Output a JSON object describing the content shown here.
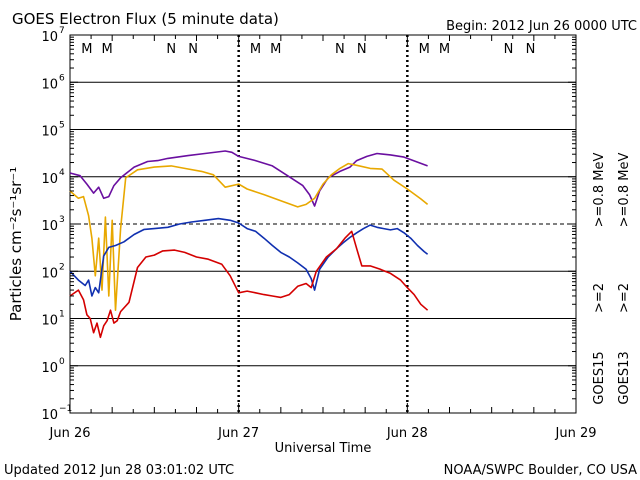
{
  "chart_data": {
    "type": "line",
    "title": "GOES Electron Flux (5 minute data)",
    "begin_label": "Begin: 2012 Jun 26 0000 UTC",
    "updated_label": "Updated 2012 Jun 28 03:01:02 UTC",
    "credit_label": "NOAA/SWPC Boulder, CO USA",
    "xlabel": "Universal Time",
    "ylabel": "Particles cm⁻²s⁻¹sr⁻¹",
    "x_unit": "days since 2012 Jun 26 0000 UTC",
    "xlim": [
      0,
      3
    ],
    "ylim_log10": [
      -1,
      7
    ],
    "x_ticks": [
      {
        "x": 0,
        "label": "Jun 26"
      },
      {
        "x": 1,
        "label": "Jun 27"
      },
      {
        "x": 2,
        "label": "Jun 28"
      },
      {
        "x": 3,
        "label": "Jun 29"
      }
    ],
    "y_ticks": [
      {
        "exp": 7,
        "base": "10",
        "sup": "7"
      },
      {
        "exp": 6,
        "base": "10",
        "sup": "6"
      },
      {
        "exp": 5,
        "base": "10",
        "sup": "5"
      },
      {
        "exp": 4,
        "base": "10",
        "sup": "4"
      },
      {
        "exp": 3,
        "base": "10",
        "sup": "3"
      },
      {
        "exp": 2,
        "base": "10",
        "sup": "2"
      },
      {
        "exp": 1,
        "base": "10",
        "sup": "1"
      },
      {
        "exp": 0,
        "base": "10",
        "sup": "0"
      },
      {
        "exp": -1,
        "base": "10",
        "sup": "−1"
      }
    ],
    "solid_gridlines_exp": [
      6,
      5,
      4,
      2,
      1,
      0
    ],
    "dashed_gridlines_exp": [
      3
    ],
    "day_markers_x": [
      1,
      2
    ],
    "mn_markers": [
      {
        "x": 0.1,
        "label": "M",
        "color": "#d40000"
      },
      {
        "x": 0.22,
        "label": "M",
        "color": "#1030b0"
      },
      {
        "x": 0.6,
        "label": "N",
        "color": "#d40000"
      },
      {
        "x": 0.73,
        "label": "N",
        "color": "#1030b0"
      },
      {
        "x": 1.1,
        "label": "M",
        "color": "#d40000"
      },
      {
        "x": 1.22,
        "label": "M",
        "color": "#1030b0"
      },
      {
        "x": 1.6,
        "label": "N",
        "color": "#d40000"
      },
      {
        "x": 1.73,
        "label": "N",
        "color": "#1030b0"
      },
      {
        "x": 2.1,
        "label": "M",
        "color": "#d40000"
      },
      {
        "x": 2.22,
        "label": "M",
        "color": "#1030b0"
      },
      {
        "x": 2.6,
        "label": "N",
        "color": "#d40000"
      },
      {
        "x": 2.73,
        "label": "N",
        "color": "#1030b0"
      }
    ],
    "legend": [
      {
        "name": "GOES15 >=0.8 MeV",
        "color": "#6a0fa0"
      },
      {
        "name": "GOES13 >=0.8 MeV",
        "color": "#e8a800"
      },
      {
        "name": "GOES15 >=2 MeV",
        "color": "#1030b0"
      },
      {
        "name": "GOES13 >=2 MeV",
        "color": "#d40000"
      }
    ],
    "legend_labels": {
      "col1_top": ">=0.8 MeV",
      "col2_top": ">=0.8 MeV",
      "col1_bottom": ">=2",
      "col2_bottom": ">=2",
      "col1_source": "GOES15",
      "col2_source": "GOES13"
    },
    "series": [
      {
        "name": "GOES15 >=0.8 MeV",
        "color": "#6a0fa0",
        "points": [
          [
            0,
            12000
          ],
          [
            0.06,
            10500
          ],
          [
            0.1,
            7000
          ],
          [
            0.14,
            4500
          ],
          [
            0.17,
            6000
          ],
          [
            0.2,
            3500
          ],
          [
            0.23,
            3800
          ],
          [
            0.26,
            6500
          ],
          [
            0.3,
            9500
          ],
          [
            0.38,
            16000
          ],
          [
            0.46,
            21000
          ],
          [
            0.52,
            22000
          ],
          [
            0.58,
            24500
          ],
          [
            0.7,
            28000
          ],
          [
            0.8,
            31000
          ],
          [
            0.92,
            35000
          ],
          [
            0.96,
            33000
          ],
          [
            1.0,
            27000
          ],
          [
            1.1,
            22000
          ],
          [
            1.2,
            17000
          ],
          [
            1.3,
            10000
          ],
          [
            1.38,
            6500
          ],
          [
            1.42,
            4200
          ],
          [
            1.45,
            2400
          ],
          [
            1.48,
            5000
          ],
          [
            1.53,
            9500
          ],
          [
            1.6,
            13000
          ],
          [
            1.66,
            16000
          ],
          [
            1.7,
            22000
          ],
          [
            1.76,
            27000
          ],
          [
            1.82,
            31000
          ],
          [
            1.9,
            29000
          ],
          [
            1.98,
            26000
          ],
          [
            2.05,
            21000
          ],
          [
            2.12,
            17000
          ]
        ]
      },
      {
        "name": "GOES13 >=0.8 MeV",
        "color": "#e8a800",
        "points": [
          [
            0,
            5000
          ],
          [
            0.05,
            3500
          ],
          [
            0.08,
            3800
          ],
          [
            0.11,
            1500
          ],
          [
            0.13,
            500
          ],
          [
            0.15,
            80
          ],
          [
            0.17,
            500
          ],
          [
            0.19,
            40
          ],
          [
            0.21,
            1400
          ],
          [
            0.23,
            30
          ],
          [
            0.25,
            1200
          ],
          [
            0.27,
            15
          ],
          [
            0.3,
            800
          ],
          [
            0.33,
            9500
          ],
          [
            0.4,
            14000
          ],
          [
            0.5,
            16000
          ],
          [
            0.6,
            17000
          ],
          [
            0.68,
            15000
          ],
          [
            0.78,
            13000
          ],
          [
            0.85,
            11000
          ],
          [
            0.92,
            6000
          ],
          [
            1.0,
            7000
          ],
          [
            1.05,
            5500
          ],
          [
            1.15,
            4200
          ],
          [
            1.25,
            3100
          ],
          [
            1.35,
            2300
          ],
          [
            1.4,
            2600
          ],
          [
            1.45,
            3500
          ],
          [
            1.5,
            7000
          ],
          [
            1.55,
            11000
          ],
          [
            1.6,
            15000
          ],
          [
            1.65,
            19000
          ],
          [
            1.7,
            17500
          ],
          [
            1.78,
            15000
          ],
          [
            1.85,
            14500
          ],
          [
            1.92,
            8500
          ],
          [
            2.0,
            5500
          ],
          [
            2.08,
            3400
          ],
          [
            2.12,
            2600
          ]
        ]
      },
      {
        "name": "GOES15 >=2 MeV",
        "color": "#1030b0",
        "points": [
          [
            0,
            100
          ],
          [
            0.05,
            65
          ],
          [
            0.09,
            50
          ],
          [
            0.11,
            65
          ],
          [
            0.13,
            30
          ],
          [
            0.15,
            45
          ],
          [
            0.17,
            35
          ],
          [
            0.2,
            210
          ],
          [
            0.23,
            320
          ],
          [
            0.27,
            350
          ],
          [
            0.32,
            420
          ],
          [
            0.38,
            600
          ],
          [
            0.44,
            770
          ],
          [
            0.5,
            800
          ],
          [
            0.58,
            850
          ],
          [
            0.65,
            1000
          ],
          [
            0.72,
            1100
          ],
          [
            0.8,
            1200
          ],
          [
            0.88,
            1300
          ],
          [
            0.95,
            1200
          ],
          [
            1.0,
            1050
          ],
          [
            1.05,
            800
          ],
          [
            1.1,
            700
          ],
          [
            1.15,
            500
          ],
          [
            1.2,
            350
          ],
          [
            1.25,
            250
          ],
          [
            1.3,
            200
          ],
          [
            1.35,
            150
          ],
          [
            1.4,
            110
          ],
          [
            1.43,
            70
          ],
          [
            1.45,
            40
          ],
          [
            1.48,
            110
          ],
          [
            1.53,
            200
          ],
          [
            1.58,
            300
          ],
          [
            1.62,
            400
          ],
          [
            1.66,
            520
          ],
          [
            1.7,
            650
          ],
          [
            1.74,
            800
          ],
          [
            1.78,
            950
          ],
          [
            1.82,
            850
          ],
          [
            1.86,
            800
          ],
          [
            1.9,
            750
          ],
          [
            1.94,
            800
          ],
          [
            1.98,
            650
          ],
          [
            2.02,
            500
          ],
          [
            2.06,
            350
          ],
          [
            2.1,
            260
          ],
          [
            2.12,
            230
          ]
        ]
      },
      {
        "name": "GOES13 >=2 MeV",
        "color": "#d40000",
        "points": [
          [
            0,
            30
          ],
          [
            0.05,
            40
          ],
          [
            0.08,
            25
          ],
          [
            0.1,
            12
          ],
          [
            0.12,
            10
          ],
          [
            0.14,
            5
          ],
          [
            0.16,
            8
          ],
          [
            0.18,
            4
          ],
          [
            0.2,
            7
          ],
          [
            0.22,
            9
          ],
          [
            0.24,
            15
          ],
          [
            0.26,
            8
          ],
          [
            0.28,
            9
          ],
          [
            0.3,
            14
          ],
          [
            0.35,
            22
          ],
          [
            0.4,
            120
          ],
          [
            0.45,
            200
          ],
          [
            0.5,
            220
          ],
          [
            0.55,
            270
          ],
          [
            0.62,
            280
          ],
          [
            0.68,
            250
          ],
          [
            0.75,
            200
          ],
          [
            0.82,
            180
          ],
          [
            0.9,
            140
          ],
          [
            0.95,
            80
          ],
          [
            1.0,
            35
          ],
          [
            1.05,
            38
          ],
          [
            1.1,
            35
          ],
          [
            1.15,
            32
          ],
          [
            1.2,
            30
          ],
          [
            1.25,
            28
          ],
          [
            1.3,
            32
          ],
          [
            1.35,
            48
          ],
          [
            1.4,
            55
          ],
          [
            1.43,
            45
          ],
          [
            1.46,
            100
          ],
          [
            1.52,
            200
          ],
          [
            1.58,
            300
          ],
          [
            1.63,
            500
          ],
          [
            1.67,
            700
          ],
          [
            1.7,
            300
          ],
          [
            1.73,
            130
          ],
          [
            1.78,
            130
          ],
          [
            1.84,
            110
          ],
          [
            1.9,
            90
          ],
          [
            1.96,
            65
          ],
          [
            2.0,
            45
          ],
          [
            2.04,
            32
          ],
          [
            2.08,
            20
          ],
          [
            2.12,
            15
          ]
        ]
      }
    ]
  }
}
